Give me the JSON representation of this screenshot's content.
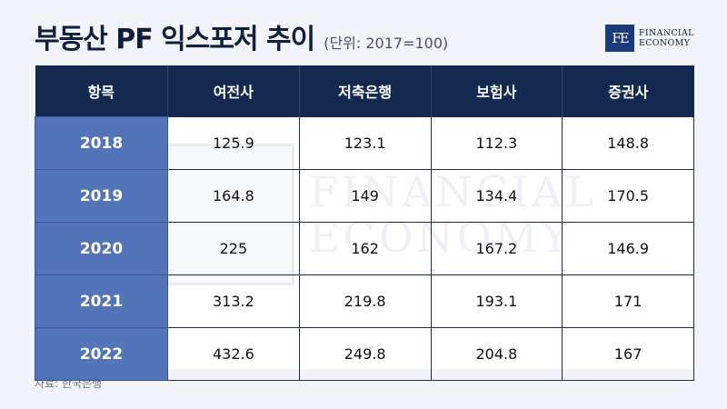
{
  "title": "부동산 PF 익스포저 추이",
  "unit": "(단위: 2017=100)",
  "logo": {
    "mark": "FE",
    "line1": "FINANCIAL",
    "line2": "ECONOMY",
    "brand_color": "#1a3a7a"
  },
  "watermark": {
    "line1": "FINANCIAL",
    "line2": "ECONOMY"
  },
  "table": {
    "headers": [
      "항목",
      "여전사",
      "저축은행",
      "보험사",
      "증권사"
    ],
    "rows": [
      {
        "year": "2018",
        "values": [
          "125.9",
          "123.1",
          "112.3",
          "148.8"
        ]
      },
      {
        "year": "2019",
        "values": [
          "164.8",
          "149",
          "134.4",
          "170.5"
        ]
      },
      {
        "year": "2020",
        "values": [
          "225",
          "162",
          "167.2",
          "146.9"
        ]
      },
      {
        "year": "2021",
        "values": [
          "313.2",
          "219.8",
          "193.1",
          "171"
        ]
      },
      {
        "year": "2022",
        "values": [
          "432.6",
          "249.8",
          "204.8",
          "167"
        ]
      }
    ]
  },
  "source": "자료: 한국은행",
  "colors": {
    "header_bg": "#13294f",
    "year_bg": "#4668b4"
  }
}
